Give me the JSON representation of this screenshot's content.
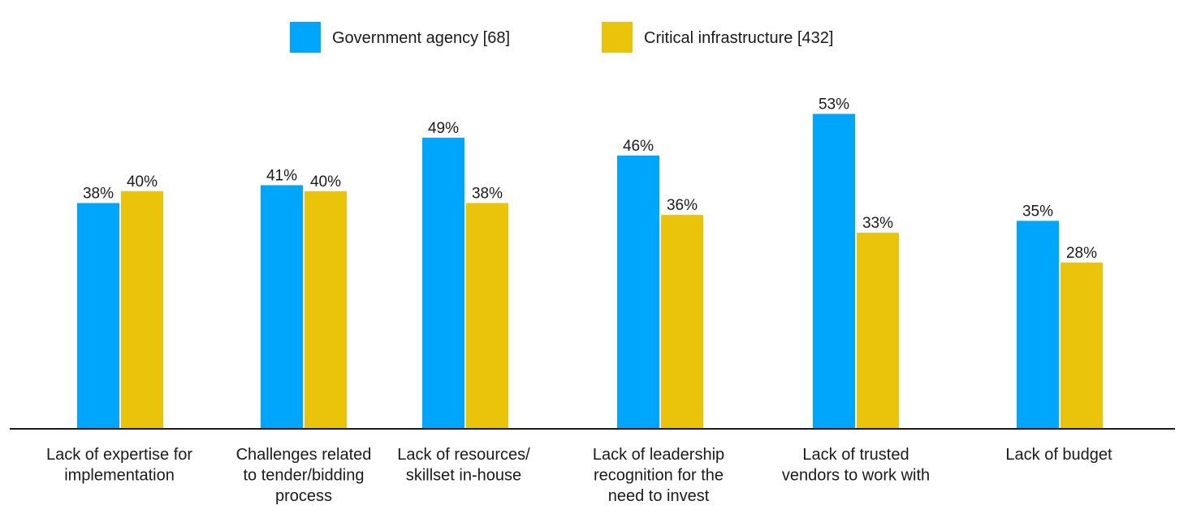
{
  "chart_data": {
    "type": "bar",
    "categories": [
      [
        "Lack of expertise for",
        "implementation"
      ],
      [
        "Challenges related",
        "to tender/bidding",
        "process"
      ],
      [
        "Lack of resources/",
        "skillset in-house"
      ],
      [
        "Lack of leadership",
        "recognition for the",
        "need to invest"
      ],
      [
        "Lack of trusted",
        "vendors to work with"
      ],
      [
        "Lack of budget"
      ]
    ],
    "series": [
      {
        "name": "Government agency [68]",
        "values": [
          38,
          41,
          49,
          46,
          53,
          35
        ],
        "labels": [
          "38%",
          "41%",
          "49%",
          "46%",
          "53%",
          "35%"
        ],
        "color": "#00A6FB"
      },
      {
        "name": "Critical infrastructure [432]",
        "values": [
          40,
          40,
          38,
          36,
          33,
          28
        ],
        "labels": [
          "40%",
          "40%",
          "38%",
          "36%",
          "33%",
          "28%"
        ],
        "color": "#E9C40B"
      }
    ],
    "ylim": [
      0,
      60
    ],
    "grid": false,
    "legend": "top-center",
    "axis_color": "#1a1a1a"
  }
}
